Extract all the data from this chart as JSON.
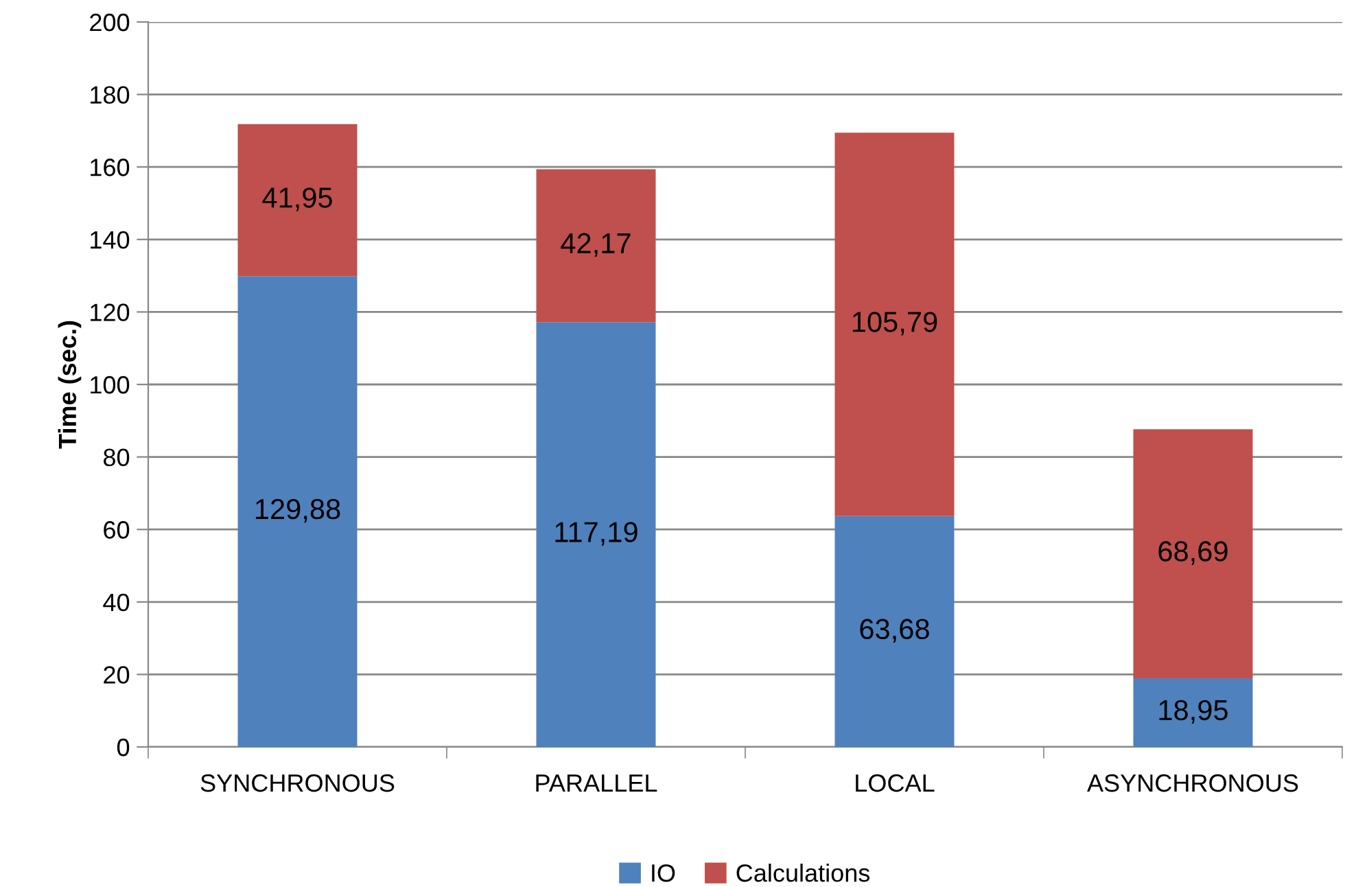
{
  "chart_data": {
    "type": "bar",
    "ylabel": "Time (sec.)",
    "categories": [
      "SYNCHRONOUS",
      "PARALLEL",
      "LOCAL",
      "ASYNCHRONOUS"
    ],
    "stacked": true,
    "ylim": [
      0,
      200
    ],
    "yticks": [
      0,
      20,
      40,
      60,
      80,
      100,
      120,
      140,
      160,
      180,
      200
    ],
    "grid": "y",
    "legend": "bottom",
    "series": [
      {
        "name": "IO",
        "color": "#4f81bd",
        "values": [
          129.88,
          117.19,
          63.68,
          18.95
        ],
        "value_labels": [
          "129,88",
          "117,19",
          "63,68",
          "18,95"
        ]
      },
      {
        "name": "Calculations",
        "color": "#c0504d",
        "values": [
          41.95,
          42.17,
          105.79,
          68.69
        ],
        "value_labels": [
          "41,95",
          "42,17",
          "105,79",
          "68,69"
        ]
      }
    ]
  }
}
